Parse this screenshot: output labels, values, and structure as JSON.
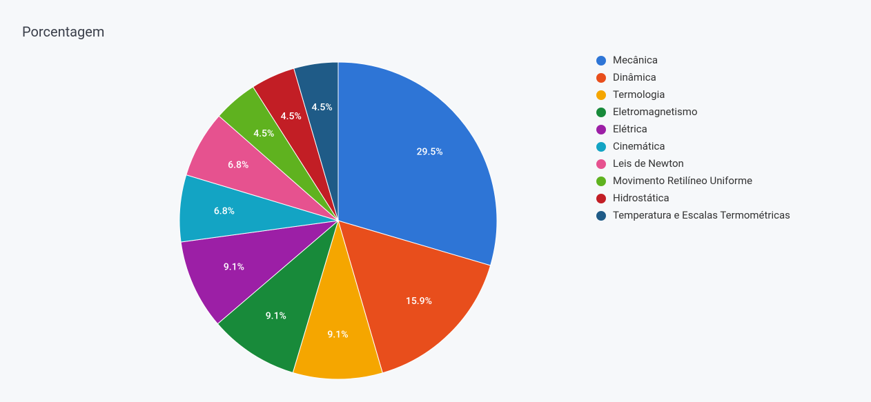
{
  "title": "Porcentagem",
  "chart": {
    "type": "pie",
    "background_color": "#f6f8fa",
    "radius": 230,
    "label_radius_factor": 0.72,
    "label_fontsize": 14,
    "label_color": "#ffffff",
    "legend_fontsize": 15,
    "legend_text_color": "#333333",
    "slice_stroke": "#ffffff",
    "slice_stroke_width": 1,
    "start_angle_deg": -90,
    "slices": [
      {
        "label": "Mecânica",
        "value": 29.5,
        "color": "#2e75d6"
      },
      {
        "label": "Dinâmica",
        "value": 15.9,
        "color": "#e84e1c"
      },
      {
        "label": "Termologia",
        "value": 9.1,
        "color": "#f5a600"
      },
      {
        "label": "Eletromagnetismo",
        "value": 9.1,
        "color": "#188a3a"
      },
      {
        "label": "Elétrica",
        "value": 9.1,
        "color": "#9c1fa6"
      },
      {
        "label": "Cinemática",
        "value": 6.8,
        "color": "#13a4c4"
      },
      {
        "label": "Leis de Newton",
        "value": 6.8,
        "color": "#e6528f"
      },
      {
        "label": "Movimento Retilíneo Uniforme",
        "value": 4.5,
        "color": "#5fb21f"
      },
      {
        "label": "Hidrostática",
        "value": 4.5,
        "color": "#c21e25"
      },
      {
        "label": "Temperatura e Escalas Termométricas",
        "value": 4.5,
        "color": "#1f5b87"
      }
    ]
  }
}
